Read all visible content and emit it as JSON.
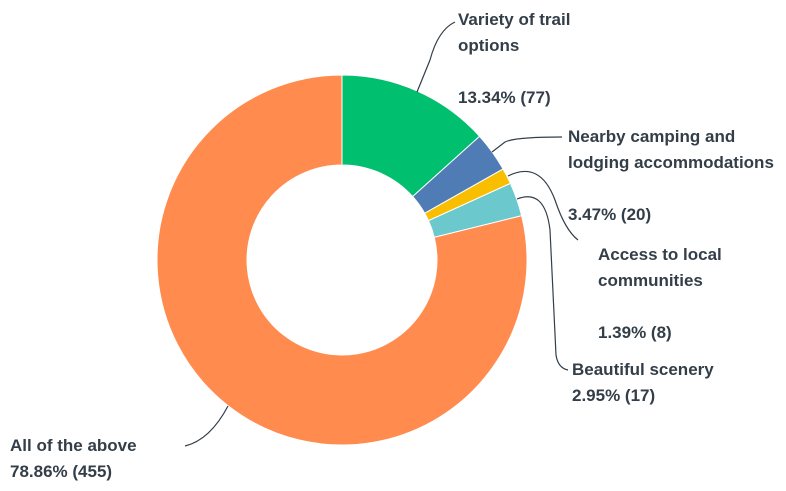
{
  "chart_data": {
    "type": "donut",
    "categories": [
      "Variety of trail options",
      "Nearby camping and lodging accommodations",
      "Access to local communities",
      "Beautiful scenery",
      "All of the above"
    ],
    "values": [
      13.34,
      3.47,
      1.39,
      2.95,
      78.86
    ],
    "value_labels": [
      "13.34% (77)",
      "3.47% (20)",
      "1.39% (8)",
      "2.95% (17)",
      "78.86% (455)"
    ],
    "colors": [
      "#00bf6f",
      "#507cb6",
      "#f9be00",
      "#6bc8cd",
      "#ff8b4f"
    ]
  }
}
